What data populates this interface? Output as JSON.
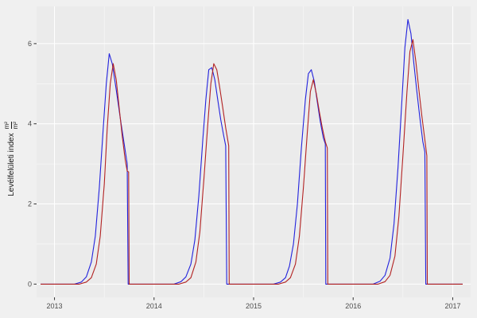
{
  "chart_data": {
    "type": "line",
    "title": "",
    "xlabel": "",
    "ylabel_text": "Levélfelületi index",
    "ylabel_frac_num": "m²",
    "ylabel_frac_den": "m²",
    "x_ticks": [
      2013,
      2014,
      2015,
      2016,
      2017
    ],
    "y_ticks": [
      0,
      2,
      4,
      6
    ],
    "x_minor": [
      2013.5,
      2014.5,
      2015.5,
      2016.5
    ],
    "y_minor": [
      1,
      3,
      5
    ],
    "xlim": [
      2012.82,
      2017.18
    ],
    "ylim": [
      -0.33,
      6.93
    ],
    "grid": "on",
    "legend": "none",
    "panel_bg": "#EBEBEB",
    "outer_bg": "#F0F0F0",
    "grid_major_color": "#FFFFFF",
    "grid_minor_color": "#FFFFFF",
    "axis_text_color": "#4D4D4D",
    "tick_mark_color": "#333333",
    "series": [
      {
        "name": "blue",
        "color": "#2222DD",
        "points": [
          [
            2012.86,
            0
          ],
          [
            2013.2,
            0
          ],
          [
            2013.27,
            0.05
          ],
          [
            2013.32,
            0.18
          ],
          [
            2013.37,
            0.55
          ],
          [
            2013.41,
            1.2
          ],
          [
            2013.45,
            2.4
          ],
          [
            2013.49,
            3.9
          ],
          [
            2013.52,
            5.0
          ],
          [
            2013.55,
            5.75
          ],
          [
            2013.58,
            5.5
          ],
          [
            2013.62,
            4.85
          ],
          [
            2013.66,
            4.15
          ],
          [
            2013.7,
            3.5
          ],
          [
            2013.73,
            3.0
          ],
          [
            2013.74,
            0
          ],
          [
            2014.2,
            0
          ],
          [
            2014.27,
            0.06
          ],
          [
            2014.32,
            0.18
          ],
          [
            2014.37,
            0.5
          ],
          [
            2014.41,
            1.1
          ],
          [
            2014.45,
            2.2
          ],
          [
            2014.49,
            3.6
          ],
          [
            2014.52,
            4.6
          ],
          [
            2014.55,
            5.35
          ],
          [
            2014.58,
            5.4
          ],
          [
            2014.61,
            5.1
          ],
          [
            2014.64,
            4.6
          ],
          [
            2014.67,
            4.1
          ],
          [
            2014.7,
            3.7
          ],
          [
            2014.72,
            3.45
          ],
          [
            2014.73,
            0
          ],
          [
            2015.2,
            0
          ],
          [
            2015.27,
            0.05
          ],
          [
            2015.32,
            0.16
          ],
          [
            2015.36,
            0.45
          ],
          [
            2015.4,
            1.0
          ],
          [
            2015.44,
            2.0
          ],
          [
            2015.48,
            3.4
          ],
          [
            2015.52,
            4.6
          ],
          [
            2015.55,
            5.25
          ],
          [
            2015.58,
            5.35
          ],
          [
            2015.61,
            5.05
          ],
          [
            2015.64,
            4.55
          ],
          [
            2015.67,
            4.05
          ],
          [
            2015.7,
            3.65
          ],
          [
            2015.72,
            3.5
          ],
          [
            2015.725,
            0
          ],
          [
            2016.2,
            0
          ],
          [
            2016.27,
            0.07
          ],
          [
            2016.32,
            0.22
          ],
          [
            2016.37,
            0.65
          ],
          [
            2016.41,
            1.5
          ],
          [
            2016.45,
            2.9
          ],
          [
            2016.49,
            4.6
          ],
          [
            2016.52,
            5.9
          ],
          [
            2016.55,
            6.6
          ],
          [
            2016.58,
            6.25
          ],
          [
            2016.61,
            5.5
          ],
          [
            2016.64,
            4.8
          ],
          [
            2016.67,
            4.15
          ],
          [
            2016.7,
            3.55
          ],
          [
            2016.72,
            3.3
          ],
          [
            2016.73,
            0
          ],
          [
            2017.1,
            0
          ]
        ]
      },
      {
        "name": "red",
        "color": "#B22222",
        "points": [
          [
            2012.86,
            0
          ],
          [
            2013.25,
            0
          ],
          [
            2013.32,
            0.05
          ],
          [
            2013.37,
            0.16
          ],
          [
            2013.42,
            0.5
          ],
          [
            2013.46,
            1.2
          ],
          [
            2013.5,
            2.5
          ],
          [
            2013.53,
            3.9
          ],
          [
            2013.56,
            5.0
          ],
          [
            2013.59,
            5.5
          ],
          [
            2013.62,
            5.1
          ],
          [
            2013.65,
            4.4
          ],
          [
            2013.68,
            3.7
          ],
          [
            2013.71,
            3.1
          ],
          [
            2013.73,
            2.82
          ],
          [
            2013.745,
            2.8
          ],
          [
            2013.75,
            0
          ],
          [
            2014.25,
            0
          ],
          [
            2014.32,
            0.05
          ],
          [
            2014.37,
            0.16
          ],
          [
            2014.42,
            0.55
          ],
          [
            2014.46,
            1.3
          ],
          [
            2014.5,
            2.6
          ],
          [
            2014.54,
            4.0
          ],
          [
            2014.57,
            5.0
          ],
          [
            2014.6,
            5.5
          ],
          [
            2014.63,
            5.35
          ],
          [
            2014.66,
            4.9
          ],
          [
            2014.69,
            4.4
          ],
          [
            2014.72,
            3.9
          ],
          [
            2014.75,
            3.45
          ],
          [
            2014.755,
            0
          ],
          [
            2015.25,
            0
          ],
          [
            2015.32,
            0.05
          ],
          [
            2015.37,
            0.16
          ],
          [
            2015.42,
            0.5
          ],
          [
            2015.46,
            1.2
          ],
          [
            2015.5,
            2.4
          ],
          [
            2015.54,
            3.8
          ],
          [
            2015.57,
            4.8
          ],
          [
            2015.6,
            5.1
          ],
          [
            2015.63,
            4.75
          ],
          [
            2015.66,
            4.3
          ],
          [
            2015.69,
            3.9
          ],
          [
            2015.72,
            3.55
          ],
          [
            2015.74,
            3.4
          ],
          [
            2015.745,
            0
          ],
          [
            2016.25,
            0
          ],
          [
            2016.32,
            0.06
          ],
          [
            2016.37,
            0.22
          ],
          [
            2016.42,
            0.7
          ],
          [
            2016.46,
            1.7
          ],
          [
            2016.5,
            3.2
          ],
          [
            2016.54,
            4.8
          ],
          [
            2016.57,
            5.8
          ],
          [
            2016.6,
            6.1
          ],
          [
            2016.63,
            5.55
          ],
          [
            2016.66,
            4.85
          ],
          [
            2016.69,
            4.2
          ],
          [
            2016.72,
            3.6
          ],
          [
            2016.74,
            3.2
          ],
          [
            2016.745,
            0
          ],
          [
            2017.1,
            0
          ]
        ]
      }
    ]
  }
}
